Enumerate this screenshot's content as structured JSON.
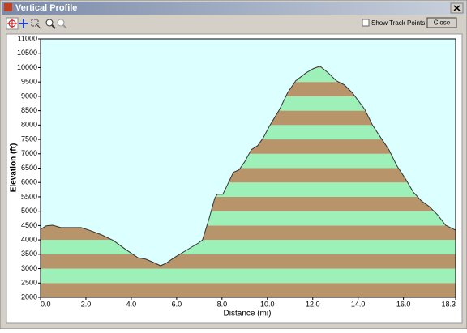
{
  "window": {
    "title": "Vertical Profile",
    "show_track_points": "Show Track Points",
    "close": "Close"
  },
  "chart_data": {
    "type": "area",
    "x_label": "Distance   (mi)",
    "y_label": "Elevation (ft)",
    "x": [
      0,
      0.25,
      0.54,
      0.89,
      1.43,
      1.79,
      2.14,
      2.68,
      3.21,
      3.75,
      4.29,
      4.64,
      5.0,
      5.29,
      5.54,
      5.89,
      6.43,
      6.96,
      7.14,
      7.43,
      7.68,
      7.79,
      8.04,
      8.21,
      8.5,
      8.75,
      9.0,
      9.29,
      9.57,
      9.82,
      10.11,
      10.54,
      10.89,
      11.25,
      11.71,
      12.04,
      12.32,
      12.68,
      13.04,
      13.39,
      13.75,
      14.29,
      14.64,
      15.0,
      15.36,
      15.71,
      16.07,
      16.43,
      16.79,
      17.14,
      17.5,
      17.86,
      18.3
    ],
    "values": [
      4370,
      4490,
      4510,
      4430,
      4430,
      4430,
      4340,
      4180,
      3980,
      3670,
      3380,
      3330,
      3210,
      3100,
      3190,
      3380,
      3640,
      3890,
      4000,
      4740,
      5450,
      5590,
      5590,
      5870,
      6350,
      6440,
      6720,
      7140,
      7280,
      7560,
      7990,
      8550,
      9120,
      9540,
      9820,
      9970,
      10050,
      9820,
      9540,
      9400,
      9120,
      8550,
      7990,
      7560,
      7140,
      6580,
      6150,
      5670,
      5360,
      5160,
      4880,
      4510,
      4340
    ],
    "band_colors": [
      "#b8946a",
      "#9cf0b8"
    ],
    "background": "#dcffff",
    "line_color": "#333333",
    "xlim": [
      0,
      18.3
    ],
    "xticks": [
      {
        "value": 0,
        "label": "0.0"
      },
      {
        "value": 2,
        "label": "2.0"
      },
      {
        "value": 4,
        "label": "4.0"
      },
      {
        "value": 6,
        "label": "6.0"
      },
      {
        "value": 8,
        "label": "8.0"
      },
      {
        "value": 10,
        "label": "10.0"
      },
      {
        "value": 12,
        "label": "12.0"
      },
      {
        "value": 14,
        "label": "14.0"
      },
      {
        "value": 16,
        "label": "16.0"
      },
      18.3
    ],
    "ylim": [
      2000,
      11000
    ],
    "yticks": [
      2000,
      2500,
      3000,
      3500,
      4000,
      4500,
      5000,
      5500,
      6000,
      6500,
      7000,
      7500,
      8000,
      8500,
      9000,
      9500,
      10000,
      10500,
      11000
    ]
  }
}
